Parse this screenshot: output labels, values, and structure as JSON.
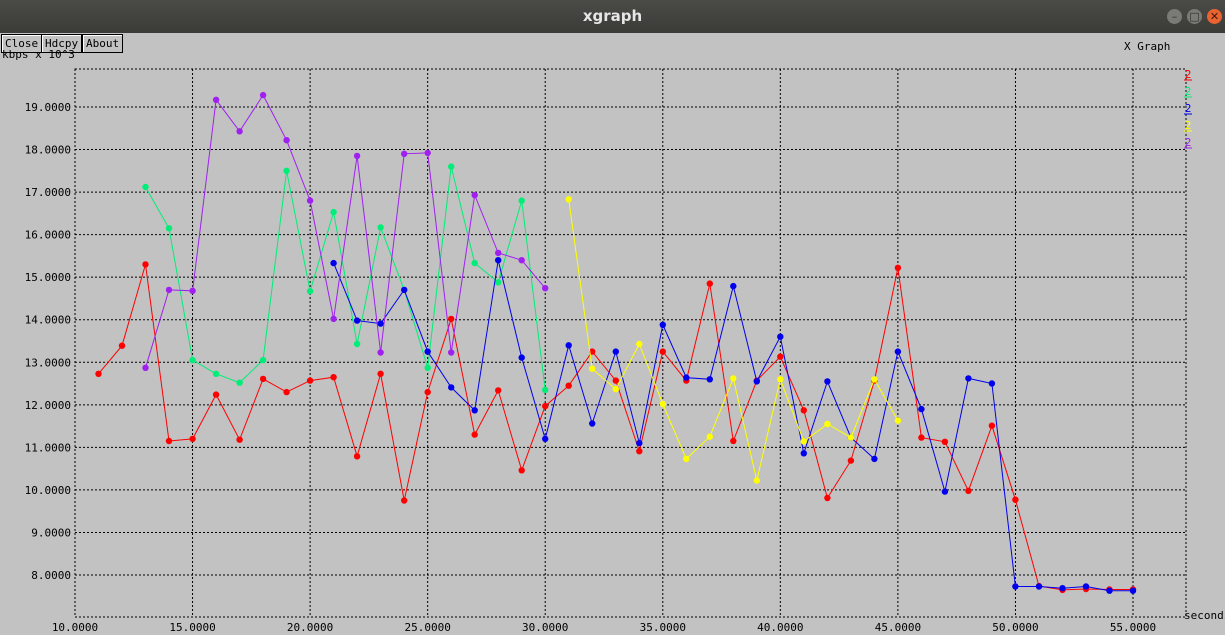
{
  "window": {
    "title": "xgraph",
    "min_icon": "minimize-icon",
    "max_icon": "maximize-icon",
    "close_icon": "close-icon"
  },
  "toolbar": {
    "close_label": "Close",
    "hdcpy_label": "Hdcpy",
    "about_label": "About"
  },
  "chart_data": {
    "type": "line",
    "title": "X Graph",
    "ylabel": "kbps x 10^3",
    "xlabel": "seconds",
    "xlim": [
      10,
      55.4
    ],
    "ylim": [
      7.3,
      19.8
    ],
    "grid": true,
    "legend_position": "top-right",
    "x_ticks": [
      10,
      15,
      20,
      25,
      30,
      35,
      40,
      45,
      50,
      55
    ],
    "x_tick_labels": [
      "10.0000",
      "15.0000",
      "20.0000",
      "25.0000",
      "30.0000",
      "35.0000",
      "40.0000",
      "45.0000",
      "50.0000",
      "55.0000"
    ],
    "y_ticks": [
      8,
      9,
      10,
      11,
      12,
      13,
      14,
      15,
      16,
      17,
      18,
      19
    ],
    "y_tick_labels": [
      "8.0000",
      "9.0000",
      "10.0000",
      "11.0000",
      "12.0000",
      "13.0000",
      "14.0000",
      "15.0000",
      "16.0000",
      "17.0000",
      "18.0000",
      "19.0000"
    ],
    "series": [
      {
        "name": "2",
        "color": "#ff0000",
        "x": [
          11,
          12,
          13,
          14,
          15,
          16,
          17,
          18,
          19,
          20,
          21,
          22,
          23,
          24,
          25,
          26,
          27,
          28,
          29,
          30,
          31,
          32,
          33,
          34,
          35,
          36,
          37,
          38,
          39,
          40,
          41,
          42,
          43,
          44,
          45,
          46,
          47,
          48,
          49,
          50,
          51,
          52,
          53,
          54,
          55
        ],
        "y": [
          12.73,
          13.39,
          15.3,
          11.15,
          11.2,
          12.24,
          11.18,
          12.61,
          12.3,
          12.57,
          12.65,
          10.79,
          12.73,
          9.75,
          12.3,
          14.02,
          11.3,
          12.34,
          10.46,
          11.97,
          12.45,
          13.25,
          12.57,
          10.91,
          13.25,
          12.57,
          14.85,
          11.15,
          12.57,
          13.13,
          11.87,
          9.81,
          10.69,
          12.57,
          15.22,
          11.23,
          11.13,
          9.98,
          11.51,
          9.77,
          7.74,
          7.65,
          7.67,
          7.66,
          7.66
        ]
      },
      {
        "name": "2",
        "color": "#00ee77",
        "x": [
          13,
          14,
          15,
          16,
          17,
          18,
          19,
          20,
          21,
          22,
          23,
          24,
          25,
          26,
          27,
          28,
          29,
          30
        ],
        "y": [
          17.12,
          16.15,
          13.05,
          12.73,
          12.52,
          13.05,
          17.5,
          14.67,
          16.53,
          13.43,
          16.17,
          14.7,
          12.87,
          17.6,
          15.33,
          14.88,
          16.8,
          12.35
        ]
      },
      {
        "name": "2",
        "color": "#0000ee",
        "x": [
          21,
          22,
          23,
          24,
          25,
          26,
          27,
          28,
          29,
          30,
          31,
          32,
          33,
          34,
          35,
          36,
          37,
          38,
          39,
          40,
          41,
          42,
          43,
          44,
          45,
          46,
          47,
          48,
          49,
          50,
          51,
          52,
          53,
          54,
          55
        ],
        "y": [
          15.33,
          13.98,
          13.91,
          14.7,
          13.25,
          12.41,
          11.87,
          15.4,
          13.11,
          11.2,
          13.4,
          11.56,
          13.25,
          11.1,
          13.88,
          12.64,
          12.6,
          14.79,
          12.55,
          13.6,
          10.86,
          12.55,
          11.23,
          10.73,
          13.25,
          11.9,
          9.96,
          12.62,
          12.5,
          7.73,
          7.73,
          7.69,
          7.73,
          7.63,
          7.63
        ]
      },
      {
        "name": "2",
        "color": "#ffff00",
        "x": [
          31,
          32,
          33,
          34,
          35,
          36,
          37,
          38,
          39,
          40,
          41,
          42,
          43,
          44,
          45
        ],
        "y": [
          16.83,
          12.85,
          12.37,
          13.43,
          12.02,
          10.73,
          11.25,
          12.62,
          10.22,
          12.6,
          11.14,
          11.55,
          11.23,
          12.6,
          11.63
        ]
      },
      {
        "name": "2",
        "color": "#a020f0",
        "x": [
          13,
          14,
          15,
          16,
          17,
          18,
          19,
          20,
          21,
          22,
          23,
          24,
          25,
          26,
          27,
          28,
          29,
          30
        ],
        "y": [
          12.87,
          14.7,
          14.68,
          19.17,
          18.43,
          19.28,
          18.22,
          16.8,
          14.02,
          17.85,
          13.23,
          17.9,
          17.92,
          13.23,
          16.93,
          15.57,
          15.4,
          14.74
        ]
      }
    ]
  }
}
